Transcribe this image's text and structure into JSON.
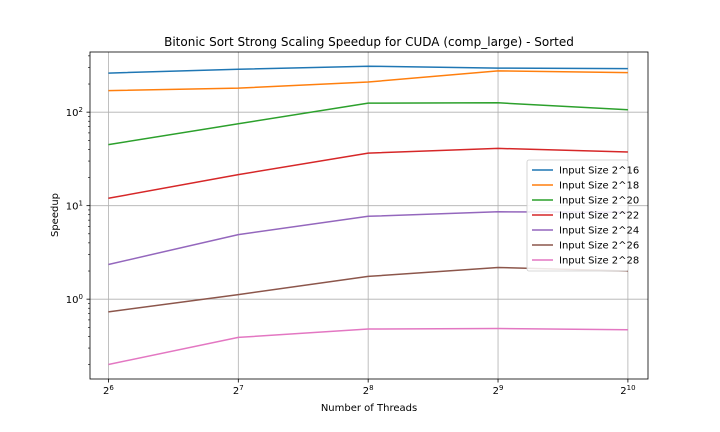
{
  "chart_data": {
    "type": "line",
    "title": "Bitonic Sort Strong Scaling Speedup for CUDA (comp_large) - Sorted",
    "xlabel": "Number of Threads",
    "ylabel": "Speedup",
    "xscale": "log2",
    "yscale": "log10",
    "x": [
      64,
      128,
      256,
      512,
      1024
    ],
    "x_ticks": [
      {
        "base": "2",
        "exp": "6"
      },
      {
        "base": "2",
        "exp": "7"
      },
      {
        "base": "2",
        "exp": "8"
      },
      {
        "base": "2",
        "exp": "9"
      },
      {
        "base": "2",
        "exp": "10"
      }
    ],
    "y_ticks": [
      {
        "value": 1,
        "base": "10",
        "exp": "0"
      },
      {
        "value": 10,
        "base": "10",
        "exp": "1"
      },
      {
        "value": 100,
        "base": "10",
        "exp": "2"
      }
    ],
    "xlim": [
      58,
      1140
    ],
    "ylim": [
      0.14,
      440
    ],
    "grid": true,
    "legend_position": "center-right",
    "series": [
      {
        "name": "Input Size 2^16",
        "color": "#1f77b4",
        "values": [
          262,
          288,
          310,
          296,
          292
        ]
      },
      {
        "name": "Input Size 2^18",
        "color": "#ff7f0e",
        "values": [
          170,
          181,
          210,
          276,
          265
        ]
      },
      {
        "name": "Input Size 2^20",
        "color": "#2ca02c",
        "values": [
          45,
          75,
          125,
          126,
          106
        ]
      },
      {
        "name": "Input Size 2^22",
        "color": "#d62728",
        "values": [
          12,
          21.5,
          36.5,
          41,
          37.5
        ]
      },
      {
        "name": "Input Size 2^24",
        "color": "#9467bd",
        "values": [
          2.35,
          4.9,
          7.7,
          8.6,
          8.5
        ]
      },
      {
        "name": "Input Size 2^26",
        "color": "#8c564b",
        "values": [
          0.73,
          1.12,
          1.75,
          2.18,
          2.0
        ]
      },
      {
        "name": "Input Size 2^28",
        "color": "#e377c2",
        "values": [
          0.2,
          0.39,
          0.48,
          0.485,
          0.47
        ]
      }
    ]
  }
}
